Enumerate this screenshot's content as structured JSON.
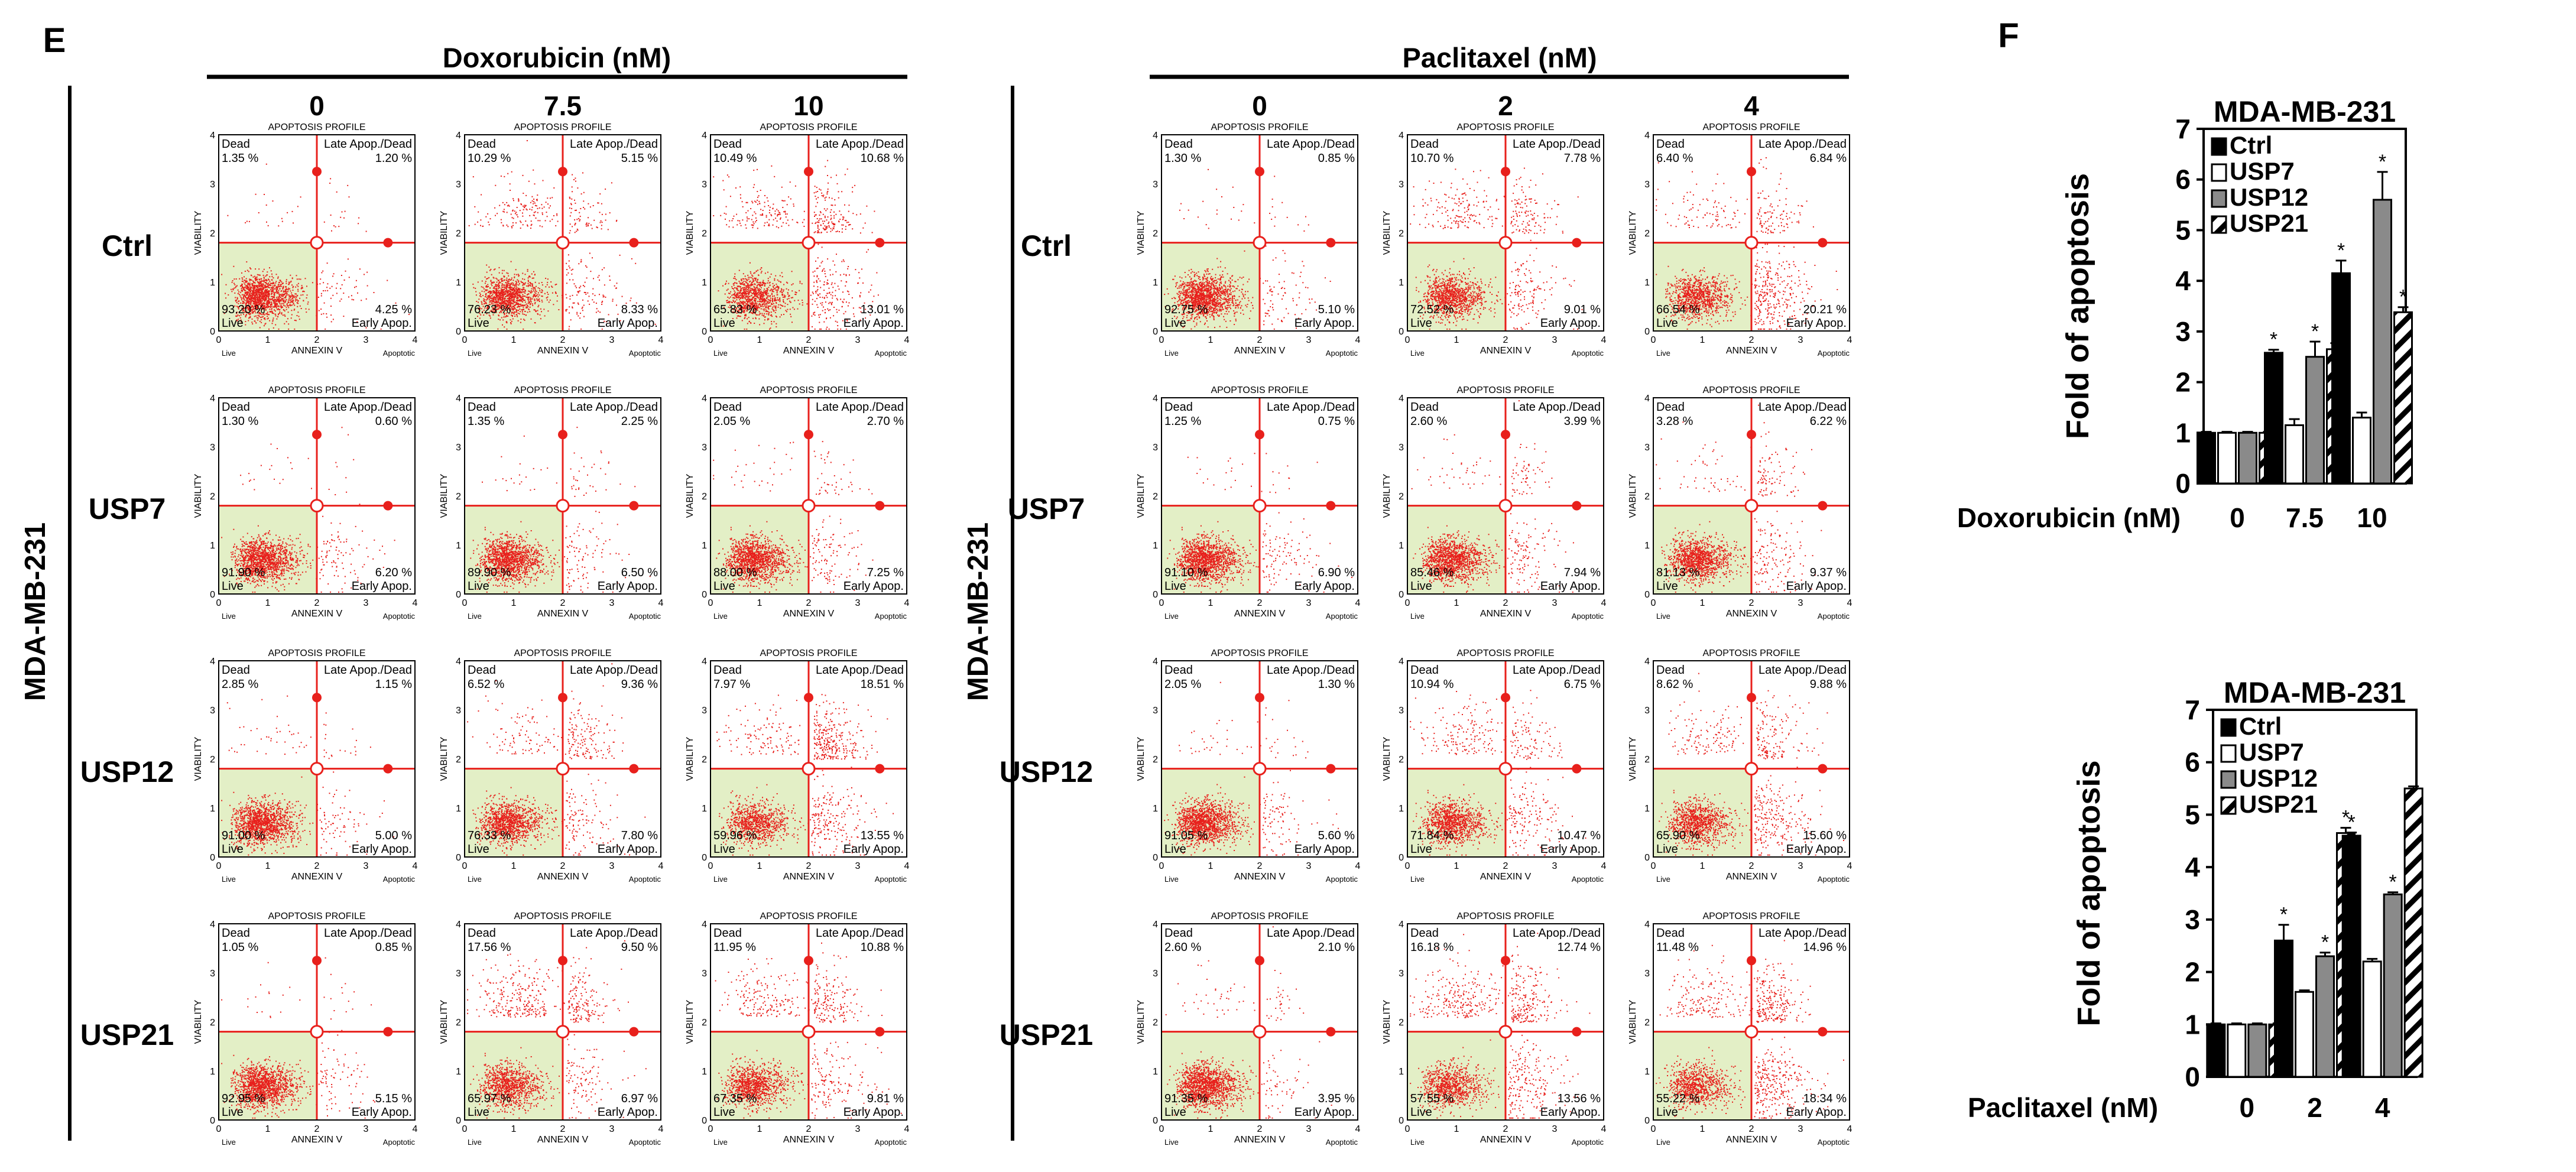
{
  "chart_data": [
    {
      "type": "scatter",
      "panel_label": "E",
      "cell_line": "MDA-MB-231",
      "plot_title": "APOPTOSIS PROFILE",
      "xlabel": "ANNEXIN V",
      "ylabel": "VIABILITY",
      "xlim": [
        0,
        4
      ],
      "ylim": [
        0,
        4
      ],
      "ticks": [
        "0",
        "1",
        "2",
        "3",
        "4"
      ],
      "x_region_labels": [
        "Live",
        "Apoptotic"
      ],
      "quadrant_labels": {
        "ul": "Dead",
        "ur": "Late Apop./Dead",
        "ll": "Live",
        "lr": "Early Apop."
      },
      "row_labels": [
        "Ctrl",
        "USP7",
        "USP12",
        "USP21"
      ],
      "treatments": [
        {
          "drug": "Doxorubicin (nM)",
          "doses": [
            "0",
            "7.5",
            "10"
          ],
          "quadrants": [
            [
              {
                "ul": "1.35 %",
                "ur": "1.20 %",
                "ll": "93.20 %",
                "lr": "4.25 %"
              },
              {
                "ul": "10.29 %",
                "ur": "5.15 %",
                "ll": "76.23 %",
                "lr": "8.33 %"
              },
              {
                "ul": "10.49 %",
                "ur": "10.68 %",
                "ll": "65.83 %",
                "lr": "13.01 %"
              }
            ],
            [
              {
                "ul": "1.30 %",
                "ur": "0.60 %",
                "ll": "91.90 %",
                "lr": "6.20 %"
              },
              {
                "ul": "1.35 %",
                "ur": "2.25 %",
                "ll": "89.90 %",
                "lr": "6.50 %"
              },
              {
                "ul": "2.05 %",
                "ur": "2.70 %",
                "ll": "88.00 %",
                "lr": "7.25 %"
              }
            ],
            [
              {
                "ul": "2.85 %",
                "ur": "1.15 %",
                "ll": "91.00 %",
                "lr": "5.00 %"
              },
              {
                "ul": "6.52 %",
                "ur": "9.36 %",
                "ll": "76.33 %",
                "lr": "7.80 %"
              },
              {
                "ul": "7.97 %",
                "ur": "18.51 %",
                "ll": "59.96 %",
                "lr": "13.55 %"
              }
            ],
            [
              {
                "ul": "1.05 %",
                "ur": "0.85 %",
                "ll": "92.95 %",
                "lr": "5.15 %"
              },
              {
                "ul": "17.56 %",
                "ur": "9.50 %",
                "ll": "65.97 %",
                "lr": "6.97 %"
              },
              {
                "ul": "11.95 %",
                "ur": "10.88 %",
                "ll": "67.35 %",
                "lr": "9.81 %"
              }
            ]
          ]
        },
        {
          "drug": "Paclitaxel (nM)",
          "doses": [
            "0",
            "2",
            "4"
          ],
          "quadrants": [
            [
              {
                "ul": "1.30 %",
                "ur": "0.85 %",
                "ll": "92.75 %",
                "lr": "5.10 %"
              },
              {
                "ul": "10.70 %",
                "ur": "7.78 %",
                "ll": "72.52 %",
                "lr": "9.01 %"
              },
              {
                "ul": "6.40 %",
                "ur": "6.84 %",
                "ll": "66.54 %",
                "lr": "20.21 %"
              }
            ],
            [
              {
                "ul": "1.25 %",
                "ur": "0.75 %",
                "ll": "91.10 %",
                "lr": "6.90 %"
              },
              {
                "ul": "2.60 %",
                "ur": "3.99 %",
                "ll": "85.46 %",
                "lr": "7.94 %"
              },
              {
                "ul": "3.28 %",
                "ur": "6.22 %",
                "ll": "81.13 %",
                "lr": "9.37 %"
              }
            ],
            [
              {
                "ul": "2.05 %",
                "ur": "1.30 %",
                "ll": "91.05 %",
                "lr": "5.60 %"
              },
              {
                "ul": "10.94 %",
                "ur": "6.75 %",
                "ll": "71.84 %",
                "lr": "10.47 %"
              },
              {
                "ul": "8.62 %",
                "ur": "9.88 %",
                "ll": "65.90 %",
                "lr": "15.60 %"
              }
            ],
            [
              {
                "ul": "2.60 %",
                "ur": "2.10 %",
                "ll": "91.35 %",
                "lr": "3.95 %"
              },
              {
                "ul": "16.18 %",
                "ur": "12.74 %",
                "ll": "57.55 %",
                "lr": "13.56 %"
              },
              {
                "ul": "11.48 %",
                "ur": "14.96 %",
                "ll": "55.22 %",
                "lr": "18.34 %"
              }
            ]
          ]
        }
      ]
    },
    {
      "type": "bar",
      "panel_label": "F",
      "title": "MDA-MB-231",
      "xlabel": "Doxorubicin (nM)",
      "ylabel": "Fold of apoptosis",
      "categories": [
        "0",
        "7.5",
        "10"
      ],
      "ylim": [
        0,
        7
      ],
      "yticks": [
        "0",
        "1",
        "2",
        "3",
        "4",
        "5",
        "6",
        "7"
      ],
      "legend": "top-left",
      "significance_mark": "*",
      "series": [
        {
          "name": "Ctrl",
          "style": "black",
          "values": [
            1.0,
            2.58,
            4.15
          ],
          "errors": [
            0.02,
            0.06,
            0.25
          ],
          "significant": [
            false,
            true,
            true
          ]
        },
        {
          "name": "USP7",
          "style": "white",
          "values": [
            1.0,
            1.15,
            1.3
          ],
          "errors": [
            0.02,
            0.12,
            0.1
          ],
          "significant": [
            false,
            false,
            false
          ]
        },
        {
          "name": "USP12",
          "style": "gray",
          "values": [
            1.0,
            2.5,
            5.6
          ],
          "errors": [
            0.02,
            0.3,
            0.55
          ],
          "significant": [
            false,
            true,
            true
          ]
        },
        {
          "name": "USP21",
          "style": "hatch",
          "values": [
            1.0,
            2.65,
            3.38
          ],
          "errors": [
            0.02,
            0.12,
            0.1
          ],
          "significant": [
            false,
            true,
            true
          ]
        }
      ]
    },
    {
      "type": "bar",
      "title": "MDA-MB-231",
      "xlabel": "Paclitaxel (nM)",
      "ylabel": "Fold of apoptosis",
      "categories": [
        "0",
        "2",
        "4"
      ],
      "ylim": [
        0,
        7
      ],
      "yticks": [
        "0",
        "1",
        "2",
        "3",
        "4",
        "5",
        "6",
        "7"
      ],
      "legend": "top-left",
      "significance_mark": "*",
      "series": [
        {
          "name": "Ctrl",
          "style": "black",
          "values": [
            1.0,
            2.6,
            4.6
          ],
          "errors": [
            0.02,
            0.3,
            0.06
          ],
          "significant": [
            false,
            true,
            true
          ]
        },
        {
          "name": "USP7",
          "style": "white",
          "values": [
            1.0,
            1.62,
            2.2
          ],
          "errors": [
            0.02,
            0.03,
            0.05
          ],
          "significant": [
            false,
            false,
            false
          ]
        },
        {
          "name": "USP12",
          "style": "gray",
          "values": [
            1.0,
            2.3,
            3.48
          ],
          "errors": [
            0.02,
            0.07,
            0.04
          ],
          "significant": [
            false,
            true,
            true
          ]
        },
        {
          "name": "USP21",
          "style": "hatch",
          "values": [
            1.0,
            4.65,
            5.5
          ],
          "errors": [
            0.02,
            0.1,
            0.04
          ],
          "significant": [
            false,
            true,
            false
          ]
        }
      ]
    }
  ]
}
